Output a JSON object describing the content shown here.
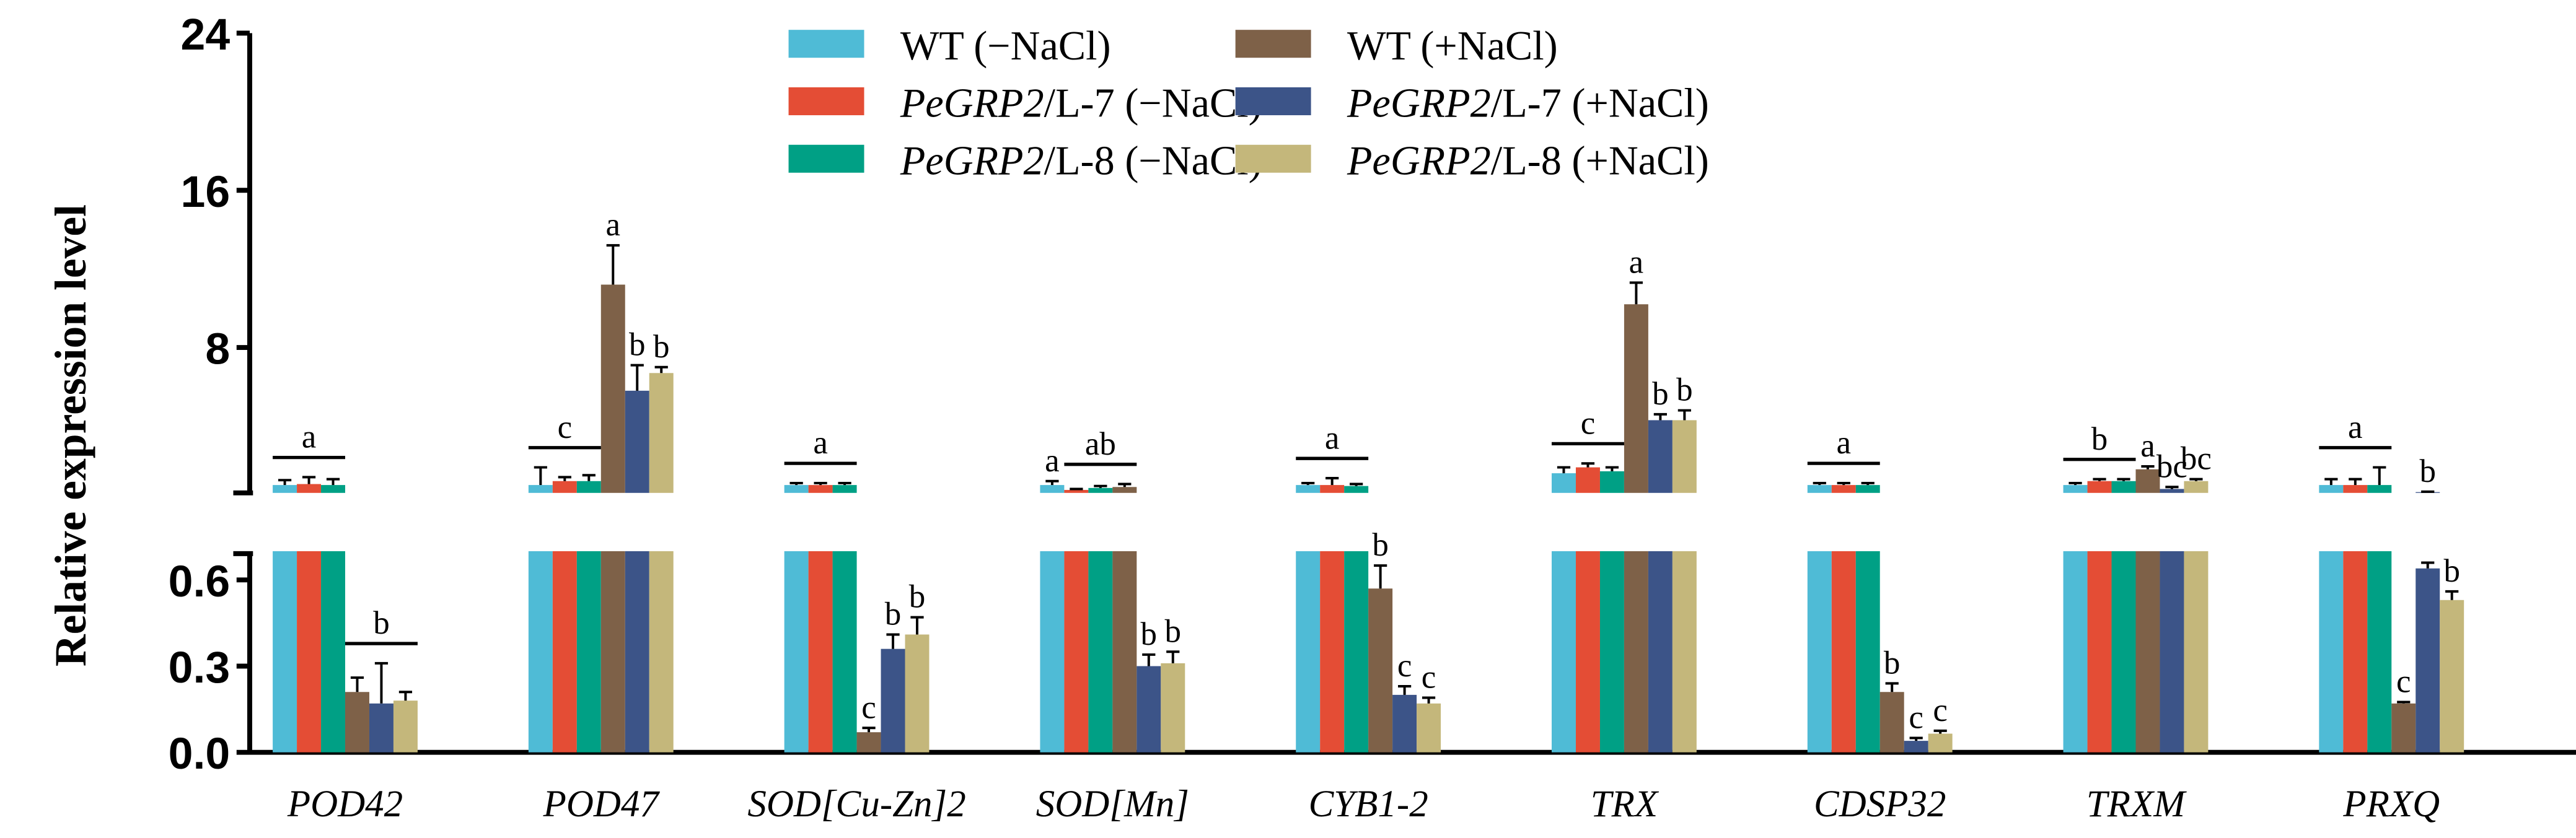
{
  "chart_data": {
    "type": "bar",
    "ylabel": "Relative expression level",
    "axis_break": true,
    "upper_ticks": [
      "8",
      "16",
      "24"
    ],
    "upper_ylim": [
      0.6,
      24
    ],
    "lower_ticks": [
      "0.0",
      "0.3",
      "0.6"
    ],
    "lower_ylim": [
      0,
      0.7
    ],
    "legend_placement": "top-center",
    "series": [
      {
        "name": "WT (−NaCl)",
        "name_italic": "",
        "name_rest": "WT (−NaCl)",
        "color": "#4fbbd6"
      },
      {
        "name": "PeGRP2/L-7 (−NaCl)",
        "name_italic": "PeGRP2",
        "name_rest": "/L-7 (−NaCl)",
        "color": "#e44d35"
      },
      {
        "name": "PeGRP2/L-8 (−NaCl)",
        "name_italic": "PeGRP2",
        "name_rest": "/L-8 (−NaCl)",
        "color": "#00a085"
      },
      {
        "name": "WT (+NaCl)",
        "name_italic": "",
        "name_rest": "WT (+NaCl)",
        "color": "#7e6148"
      },
      {
        "name": "PeGRP2/L-7 (+NaCl)",
        "name_italic": "PeGRP2",
        "name_rest": "/L-7 (+NaCl)",
        "color": "#3c5488"
      },
      {
        "name": "PeGRP2/L-8 (+NaCl)",
        "name_italic": "PeGRP2",
        "name_rest": "/L-8 (+NaCl)",
        "color": "#c4b77b"
      }
    ],
    "categories": [
      "POD42",
      "POD47",
      "SOD[Cu-Zn]2",
      "SOD[Mn]",
      "CYB1-2",
      "TRX",
      "CDSP32",
      "TRXM",
      "PRXQ"
    ],
    "groups": [
      {
        "values": [
          1.0,
          1.05,
          1.0,
          0.21,
          0.17,
          0.18
        ],
        "errors": [
          0.25,
          0.35,
          0.3,
          0.05,
          0.14,
          0.03
        ],
        "annotations": [
          {
            "text": "a",
            "from": 0,
            "to": 2
          },
          {
            "text": "b",
            "from": 3,
            "to": 5
          }
        ]
      },
      {
        "values": [
          1.0,
          1.2,
          1.2,
          11.2,
          5.8,
          6.7
        ],
        "errors": [
          0.9,
          0.2,
          0.3,
          2.0,
          1.3,
          0.3
        ],
        "annotations": [
          {
            "text": "c",
            "from": 0,
            "to": 2
          },
          {
            "text": "a",
            "from": 3,
            "to": 3
          },
          {
            "text": "b",
            "from": 4,
            "to": 4
          },
          {
            "text": "b",
            "from": 5,
            "to": 5
          }
        ]
      },
      {
        "values": [
          1.0,
          1.0,
          1.0,
          0.07,
          0.36,
          0.41
        ],
        "errors": [
          0.1,
          0.1,
          0.1,
          0.015,
          0.05,
          0.06
        ],
        "annotations": [
          {
            "text": "a",
            "from": 0,
            "to": 2
          },
          {
            "text": "c",
            "from": 3,
            "to": 3
          },
          {
            "text": "b",
            "from": 4,
            "to": 4
          },
          {
            "text": "b",
            "from": 5,
            "to": 5
          }
        ]
      },
      {
        "values": [
          1.0,
          0.75,
          0.85,
          0.9,
          0.3,
          0.31
        ],
        "errors": [
          0.2,
          0.05,
          0.1,
          0.15,
          0.04,
          0.04
        ],
        "annotations": [
          {
            "text": "a",
            "from": 0,
            "to": 0
          },
          {
            "text": "ab",
            "from": 1,
            "to": 3
          },
          {
            "text": "b",
            "from": 4,
            "to": 4
          },
          {
            "text": "b",
            "from": 5,
            "to": 5
          }
        ]
      },
      {
        "values": [
          1.0,
          1.0,
          0.95,
          0.57,
          0.2,
          0.17
        ],
        "errors": [
          0.1,
          0.35,
          0.1,
          0.08,
          0.03,
          0.02
        ],
        "annotations": [
          {
            "text": "a",
            "from": 0,
            "to": 2
          },
          {
            "text": "b",
            "from": 3,
            "to": 3
          },
          {
            "text": "c",
            "from": 4,
            "to": 4
          },
          {
            "text": "c",
            "from": 5,
            "to": 5
          }
        ]
      },
      {
        "values": [
          1.6,
          1.9,
          1.7,
          10.2,
          4.3,
          4.3
        ],
        "errors": [
          0.3,
          0.2,
          0.2,
          1.1,
          0.3,
          0.5
        ],
        "annotations": [
          {
            "text": "c",
            "from": 0,
            "to": 2
          },
          {
            "text": "a",
            "from": 3,
            "to": 3
          },
          {
            "text": "b",
            "from": 4,
            "to": 4
          },
          {
            "text": "b",
            "from": 5,
            "to": 5
          }
        ]
      },
      {
        "values": [
          1.0,
          1.0,
          1.0,
          0.21,
          0.04,
          0.065
        ],
        "errors": [
          0.1,
          0.1,
          0.1,
          0.03,
          0.01,
          0.01
        ],
        "annotations": [
          {
            "text": "a",
            "from": 0,
            "to": 2
          },
          {
            "text": "b",
            "from": 3,
            "to": 3
          },
          {
            "text": "c",
            "from": 4,
            "to": 4
          },
          {
            "text": "c",
            "from": 5,
            "to": 5
          }
        ]
      },
      {
        "values": [
          1.0,
          1.2,
          1.2,
          1.8,
          0.8,
          1.2
        ],
        "errors": [
          0.1,
          0.1,
          0.1,
          0.15,
          0.1,
          0.1
        ],
        "annotations": [
          {
            "text": "b",
            "from": 0,
            "to": 2
          },
          {
            "text": "a",
            "from": 3,
            "to": 3
          },
          {
            "text": "bc",
            "from": 4,
            "to": 4
          },
          {
            "text": "bc",
            "from": 5,
            "to": 5
          }
        ]
      },
      {
        "values": [
          1.0,
          1.0,
          1.0,
          0.17,
          0.64,
          0.53
        ],
        "errors": [
          0.3,
          0.3,
          0.9,
          0.005,
          0.02,
          0.03
        ],
        "annotations": [
          {
            "text": "a",
            "from": 0,
            "to": 2
          },
          {
            "text": "c",
            "from": 3,
            "to": 3
          },
          {
            "text": "b",
            "from": 4,
            "to": 4
          },
          {
            "text": "b",
            "from": 5,
            "to": 5
          }
        ]
      }
    ]
  }
}
